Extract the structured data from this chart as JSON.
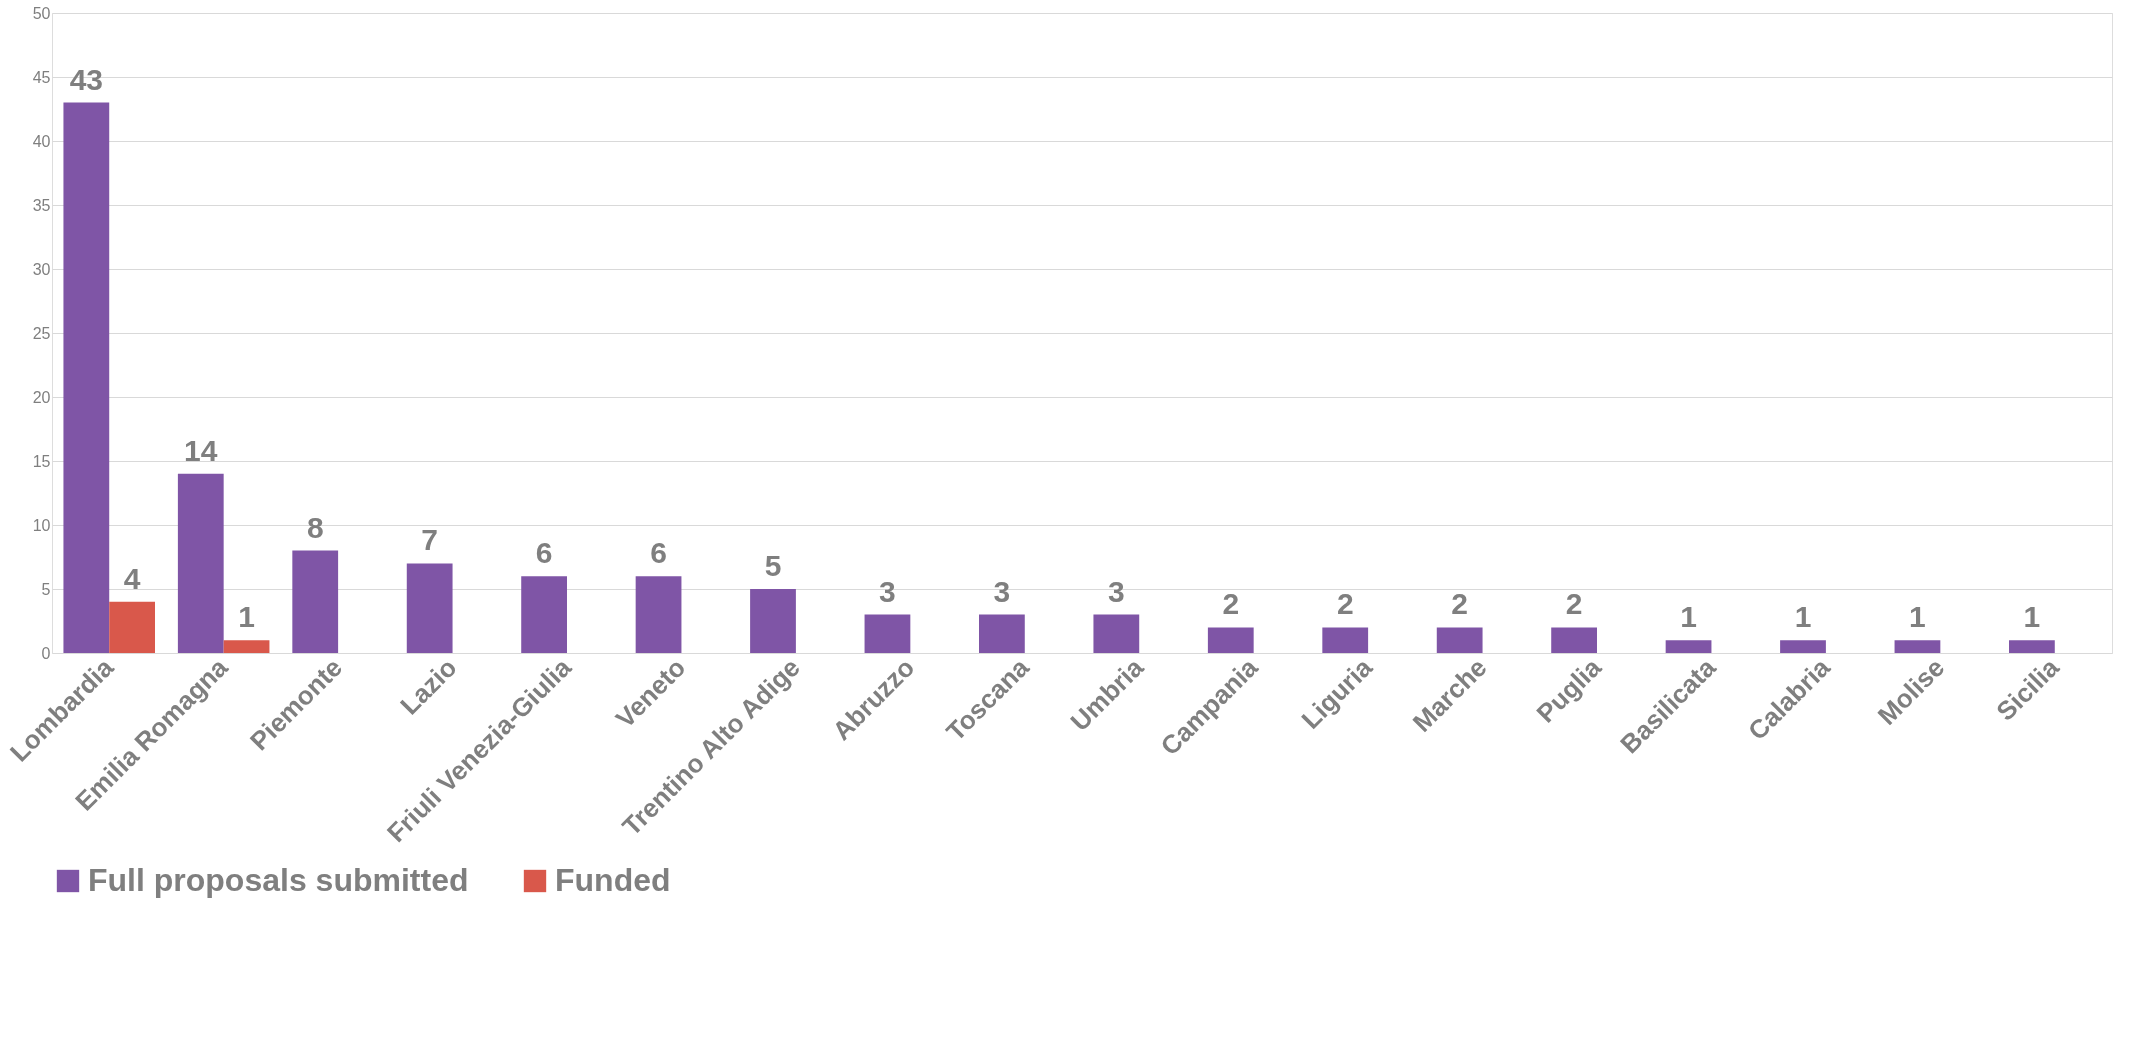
{
  "chart_data": {
    "type": "bar",
    "categories": [
      "Lombardia",
      "Emilia Romagna",
      "Piemonte",
      "Lazio",
      "Friuli Venezia-Giulia",
      "Veneto",
      "Trentino Alto Adige",
      "Abruzzo",
      "Toscana",
      "Umbria",
      "Campania",
      "Liguria",
      "Marche",
      "Puglia",
      "Basilicata",
      "Calabria",
      "Molise",
      "Sicilia"
    ],
    "series": [
      {
        "name": "Full proposals submitted",
        "color": "#7f55a6",
        "values": [
          43,
          14,
          8,
          7,
          6,
          6,
          5,
          3,
          3,
          3,
          2,
          2,
          2,
          2,
          1,
          1,
          1,
          1
        ]
      },
      {
        "name": "Funded",
        "color": "#d9584b",
        "values": [
          4,
          1,
          null,
          null,
          null,
          null,
          null,
          null,
          null,
          null,
          null,
          null,
          null,
          null,
          null,
          null,
          null,
          null
        ]
      }
    ],
    "ylim": [
      0,
      50
    ],
    "yticks": [
      0,
      5,
      10,
      15,
      20,
      25,
      30,
      35,
      40,
      45,
      50
    ],
    "grid": "y",
    "legend": "bottom",
    "data_labels": true
  }
}
